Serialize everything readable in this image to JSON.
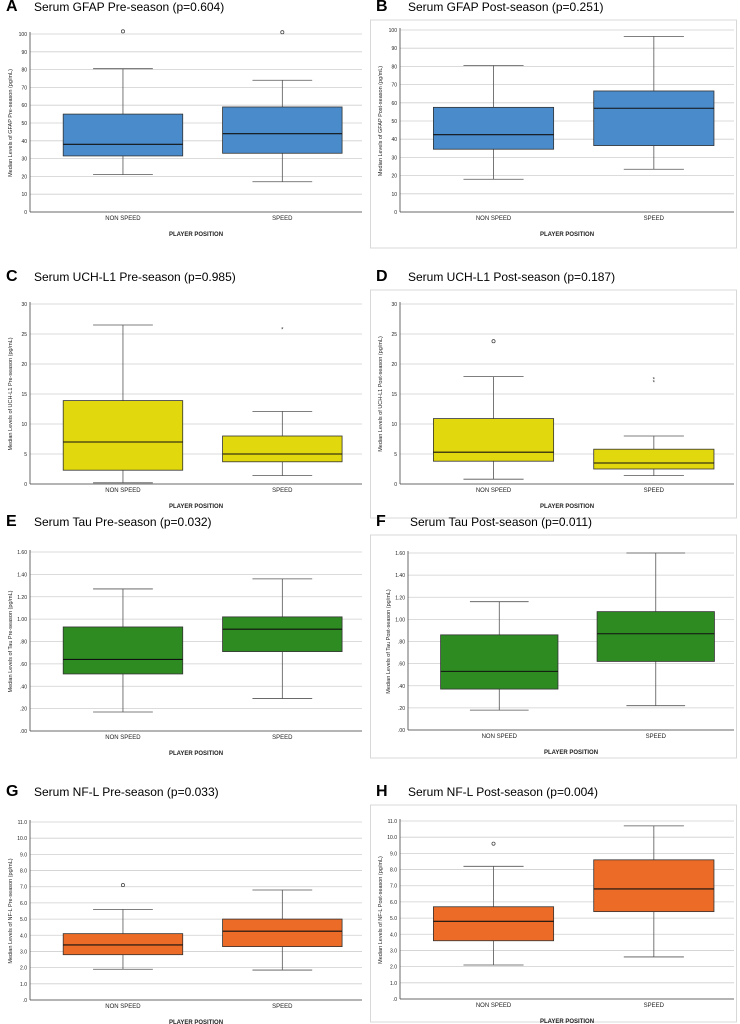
{
  "chart_data": [
    {
      "panel": "A",
      "type": "box",
      "title": "Serum GFAP Pre-season (p=0.604)",
      "ylabel": "Median Levels of GFAP Pre-season (pg/mL)",
      "xlabel": "PLAYER POSITION",
      "ylim": [
        0,
        100
      ],
      "yticks": [
        0,
        10,
        20,
        30,
        40,
        50,
        60,
        70,
        80,
        90,
        100
      ],
      "ytick_labels": [
        "0",
        "10",
        "20",
        "30",
        "40",
        "50",
        "60",
        "70",
        "80",
        "90",
        "100"
      ],
      "color": "#4a8bcb",
      "categories": [
        "NON SPEED",
        "SPEED"
      ],
      "boxes": [
        {
          "min": 21,
          "q1": 31.5,
          "median": 38,
          "q3": 55,
          "max": 80.5,
          "outliers": [
            101.5
          ],
          "extremes": []
        },
        {
          "min": 17,
          "q1": 33,
          "median": 44,
          "q3": 59,
          "max": 74,
          "outliers": [
            101
          ],
          "extremes": []
        }
      ]
    },
    {
      "panel": "B",
      "type": "box",
      "title": "Serum GFAP Post-season (p=0.251)",
      "ylabel": "Median Levels of GFAP Post-season (pg/mL)",
      "xlabel": "PLAYER POSITION",
      "ylim": [
        0,
        100
      ],
      "yticks": [
        0,
        10,
        20,
        30,
        40,
        50,
        60,
        70,
        80,
        90,
        100
      ],
      "ytick_labels": [
        "0",
        "10",
        "20",
        "30",
        "40",
        "50",
        "60",
        "70",
        "80",
        "90",
        "100"
      ],
      "color": "#4a8bcb",
      "categories": [
        "NON SPEED",
        "SPEED"
      ],
      "boxes": [
        {
          "min": 18,
          "q1": 34.5,
          "median": 42.5,
          "q3": 57.5,
          "max": 80.5,
          "outliers": [],
          "extremes": []
        },
        {
          "min": 23.5,
          "q1": 36.5,
          "median": 57,
          "q3": 66.5,
          "max": 96.5,
          "outliers": [],
          "extremes": []
        }
      ]
    },
    {
      "panel": "C",
      "type": "box",
      "title": "Serum UCH-L1 Pre-season (p=0.985)",
      "ylabel": "Median Levels of UCH-L1 Pre-season (pg/mL)",
      "xlabel": "PLAYER POSITION",
      "ylim": [
        0,
        30
      ],
      "yticks": [
        0,
        5,
        10,
        15,
        20,
        25,
        30
      ],
      "ytick_labels": [
        "0",
        "5",
        "10",
        "15",
        "20",
        "25",
        "30"
      ],
      "color": "#e2d80e",
      "categories": [
        "NON SPEED",
        "SPEED"
      ],
      "boxes": [
        {
          "min": 0.2,
          "q1": 2.3,
          "median": 7,
          "q3": 13.9,
          "max": 26.5,
          "outliers": [],
          "extremes": []
        },
        {
          "min": 1.4,
          "q1": 3.7,
          "median": 5,
          "q3": 8,
          "max": 12.1,
          "outliers": [],
          "extremes": [
            25.8
          ]
        }
      ]
    },
    {
      "panel": "D",
      "type": "box",
      "title": "Serum UCH-L1 Post-season (p=0.187)",
      "ylabel": "Median Levels of UCH-L1 Post-season (pg/mL)",
      "xlabel": "PLAYER POSITION",
      "ylim": [
        0,
        30
      ],
      "yticks": [
        0,
        5,
        10,
        15,
        20,
        25,
        30
      ],
      "ytick_labels": [
        "0",
        "5",
        "10",
        "15",
        "20",
        "25",
        "30"
      ],
      "color": "#e2d80e",
      "categories": [
        "NON SPEED",
        "SPEED"
      ],
      "boxes": [
        {
          "min": 0.8,
          "q1": 3.8,
          "median": 5.3,
          "q3": 10.9,
          "max": 17.9,
          "outliers": [
            23.8
          ],
          "extremes": []
        },
        {
          "min": 1.4,
          "q1": 2.5,
          "median": 3.5,
          "q3": 5.8,
          "max": 8,
          "outliers": [],
          "extremes": [
            17.5,
            17.0
          ]
        }
      ]
    },
    {
      "panel": "E",
      "type": "box",
      "title": "Serum Tau Pre-season (p=0.032)",
      "ylabel": "Median Levels of Tau Pre-season (pg/mL)",
      "xlabel": "PLAYER POSITION",
      "ylim": [
        0,
        1.6
      ],
      "yticks": [
        0,
        0.2,
        0.4,
        0.6,
        0.8,
        1.0,
        1.2,
        1.4,
        1.6
      ],
      "ytick_labels": [
        ".00",
        ".20",
        ".40",
        ".60",
        ".80",
        "1.00",
        "1.20",
        "1.40",
        "1.60"
      ],
      "color": "#2e8b22",
      "categories": [
        "NON SPEED",
        "SPEED"
      ],
      "boxes": [
        {
          "min": 0.17,
          "q1": 0.51,
          "median": 0.64,
          "q3": 0.93,
          "max": 1.27,
          "outliers": [],
          "extremes": []
        },
        {
          "min": 0.29,
          "q1": 0.71,
          "median": 0.91,
          "q3": 1.02,
          "max": 1.36,
          "outliers": [],
          "extremes": []
        }
      ]
    },
    {
      "panel": "F",
      "type": "box",
      "title": "Serum Tau Post-season (p=0.011)",
      "ylabel": "Median Levels of Tau Post-season (pg/mL)",
      "xlabel": "PLAYER POSITION",
      "ylim": [
        0,
        1.6
      ],
      "yticks": [
        0,
        0.2,
        0.4,
        0.6,
        0.8,
        1.0,
        1.2,
        1.4,
        1.6
      ],
      "ytick_labels": [
        ".00",
        ".20",
        ".40",
        ".60",
        ".80",
        "1.00",
        "1.20",
        "1.40",
        "1.60"
      ],
      "color": "#2e8b22",
      "categories": [
        "NON SPEED",
        "SPEED"
      ],
      "boxes": [
        {
          "min": 0.18,
          "q1": 0.37,
          "median": 0.53,
          "q3": 0.86,
          "max": 1.16,
          "outliers": [],
          "extremes": []
        },
        {
          "min": 0.22,
          "q1": 0.62,
          "median": 0.87,
          "q3": 1.07,
          "max": 1.6,
          "outliers": [],
          "extremes": []
        }
      ]
    },
    {
      "panel": "G",
      "type": "box",
      "title": "Serum NF-L Pre-season (p=0.033)",
      "ylabel": "Median Levels of NF-L Pre-season (pg/mL)",
      "xlabel": "PLAYER POSITION",
      "ylim": [
        0,
        11
      ],
      "yticks": [
        0,
        1,
        2,
        3,
        4,
        5,
        6,
        7,
        8,
        9,
        10,
        11
      ],
      "ytick_labels": [
        ".0",
        "1.0",
        "2.0",
        "3.0",
        "4.0",
        "5.0",
        "6.0",
        "7.0",
        "8.0",
        "9.0",
        "10.0",
        "11.0"
      ],
      "color": "#ec6b27",
      "categories": [
        "NON SPEED",
        "SPEED"
      ],
      "boxes": [
        {
          "min": 1.9,
          "q1": 2.8,
          "median": 3.4,
          "q3": 4.1,
          "max": 5.6,
          "outliers": [
            7.1
          ],
          "extremes": []
        },
        {
          "min": 1.85,
          "q1": 3.3,
          "median": 4.25,
          "q3": 5.0,
          "max": 6.8,
          "outliers": [],
          "extremes": []
        }
      ]
    },
    {
      "panel": "H",
      "type": "box",
      "title": "Serum NF-L Post-season (p=0.004)",
      "ylabel": "Median Levels of NF-L Post-season (pg/mL)",
      "xlabel": "PLAYER POSITION",
      "ylim": [
        0,
        11
      ],
      "yticks": [
        0,
        1,
        2,
        3,
        4,
        5,
        6,
        7,
        8,
        9,
        10,
        11
      ],
      "ytick_labels": [
        ".0",
        "1.0",
        "2.0",
        "3.0",
        "4.0",
        "5.0",
        "6.0",
        "7.0",
        "8.0",
        "9.0",
        "10.0",
        "11.0"
      ],
      "color": "#ec6b27",
      "categories": [
        "NON SPEED",
        "SPEED"
      ],
      "boxes": [
        {
          "min": 2.1,
          "q1": 3.6,
          "median": 4.8,
          "q3": 5.7,
          "max": 8.2,
          "outliers": [
            9.6
          ],
          "extremes": []
        },
        {
          "min": 2.6,
          "q1": 5.4,
          "median": 6.8,
          "q3": 8.6,
          "max": 10.7,
          "outliers": [],
          "extremes": []
        }
      ]
    }
  ]
}
